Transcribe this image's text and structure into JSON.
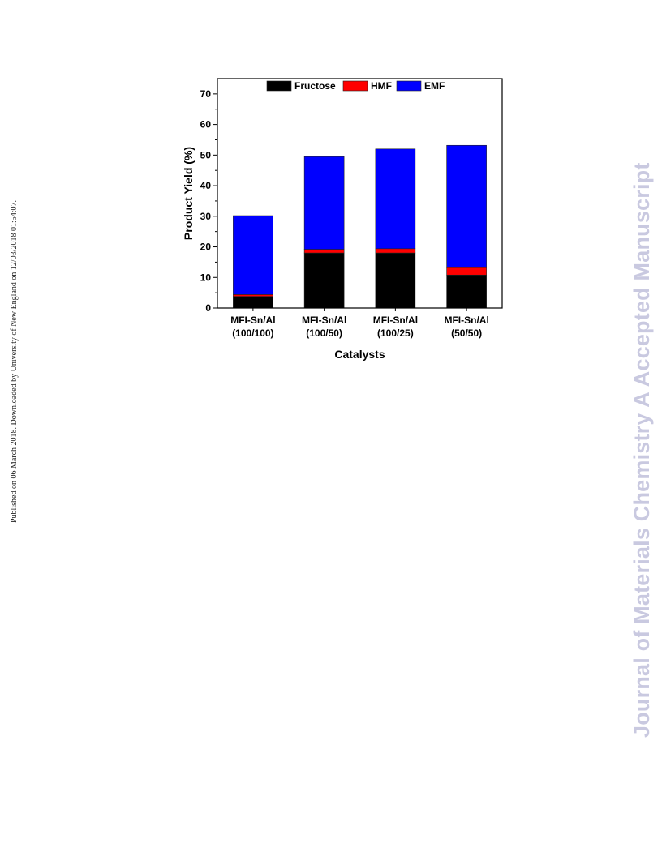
{
  "side_note": "Published on 06 March 2018. Downloaded by University of New England on 12/03/2018 01:54:07.",
  "watermark": "Journal of Materials Chemistry A Accepted Manuscript",
  "chart_data": {
    "type": "bar",
    "stacked": true,
    "categories": [
      [
        "MFI-Sn/Al",
        "(100/100)"
      ],
      [
        "MFI-Sn/Al",
        "(100/50)"
      ],
      [
        "MFI-Sn/Al",
        "(100/25)"
      ],
      [
        "MFI-Sn/Al",
        "(50/50)"
      ]
    ],
    "series": [
      {
        "name": "Fructose",
        "color": "#000000",
        "values": [
          3.8,
          18.0,
          18.0,
          10.8
        ]
      },
      {
        "name": "HMF",
        "color": "#ff0000",
        "values": [
          0.6,
          1.2,
          1.4,
          2.4
        ]
      },
      {
        "name": "EMF",
        "color": "#0000ff",
        "values": [
          25.8,
          30.3,
          32.6,
          40.0
        ]
      }
    ],
    "xlabel": "Catalysts",
    "ylabel": "Product Yield (%)",
    "ylim": [
      0,
      75
    ],
    "yticks": [
      0,
      10,
      20,
      30,
      40,
      50,
      60,
      70
    ],
    "grid": false,
    "legend": "top"
  }
}
